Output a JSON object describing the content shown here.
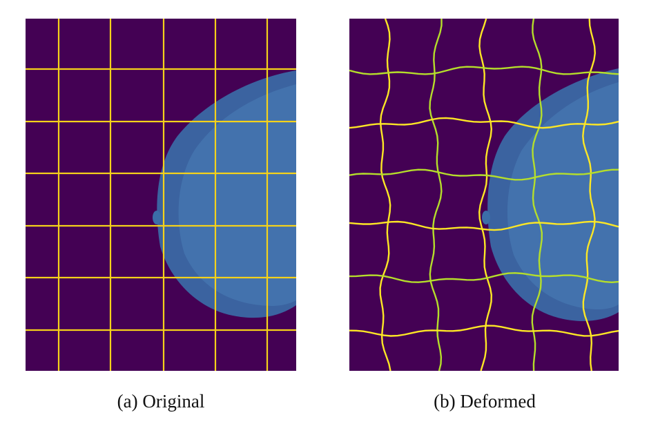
{
  "figure": {
    "panels": [
      {
        "id": "a",
        "caption": "(a) Original"
      },
      {
        "id": "b",
        "caption": "(b) Deformed"
      }
    ]
  },
  "colors": {
    "background": "#440154",
    "grid_original": "#f5d21a",
    "grid_deformed_a": "#b5de2b",
    "grid_deformed_b": "#fde725",
    "tissue": "#3b6ea8",
    "tissue_edge": "#5b8fc7"
  }
}
